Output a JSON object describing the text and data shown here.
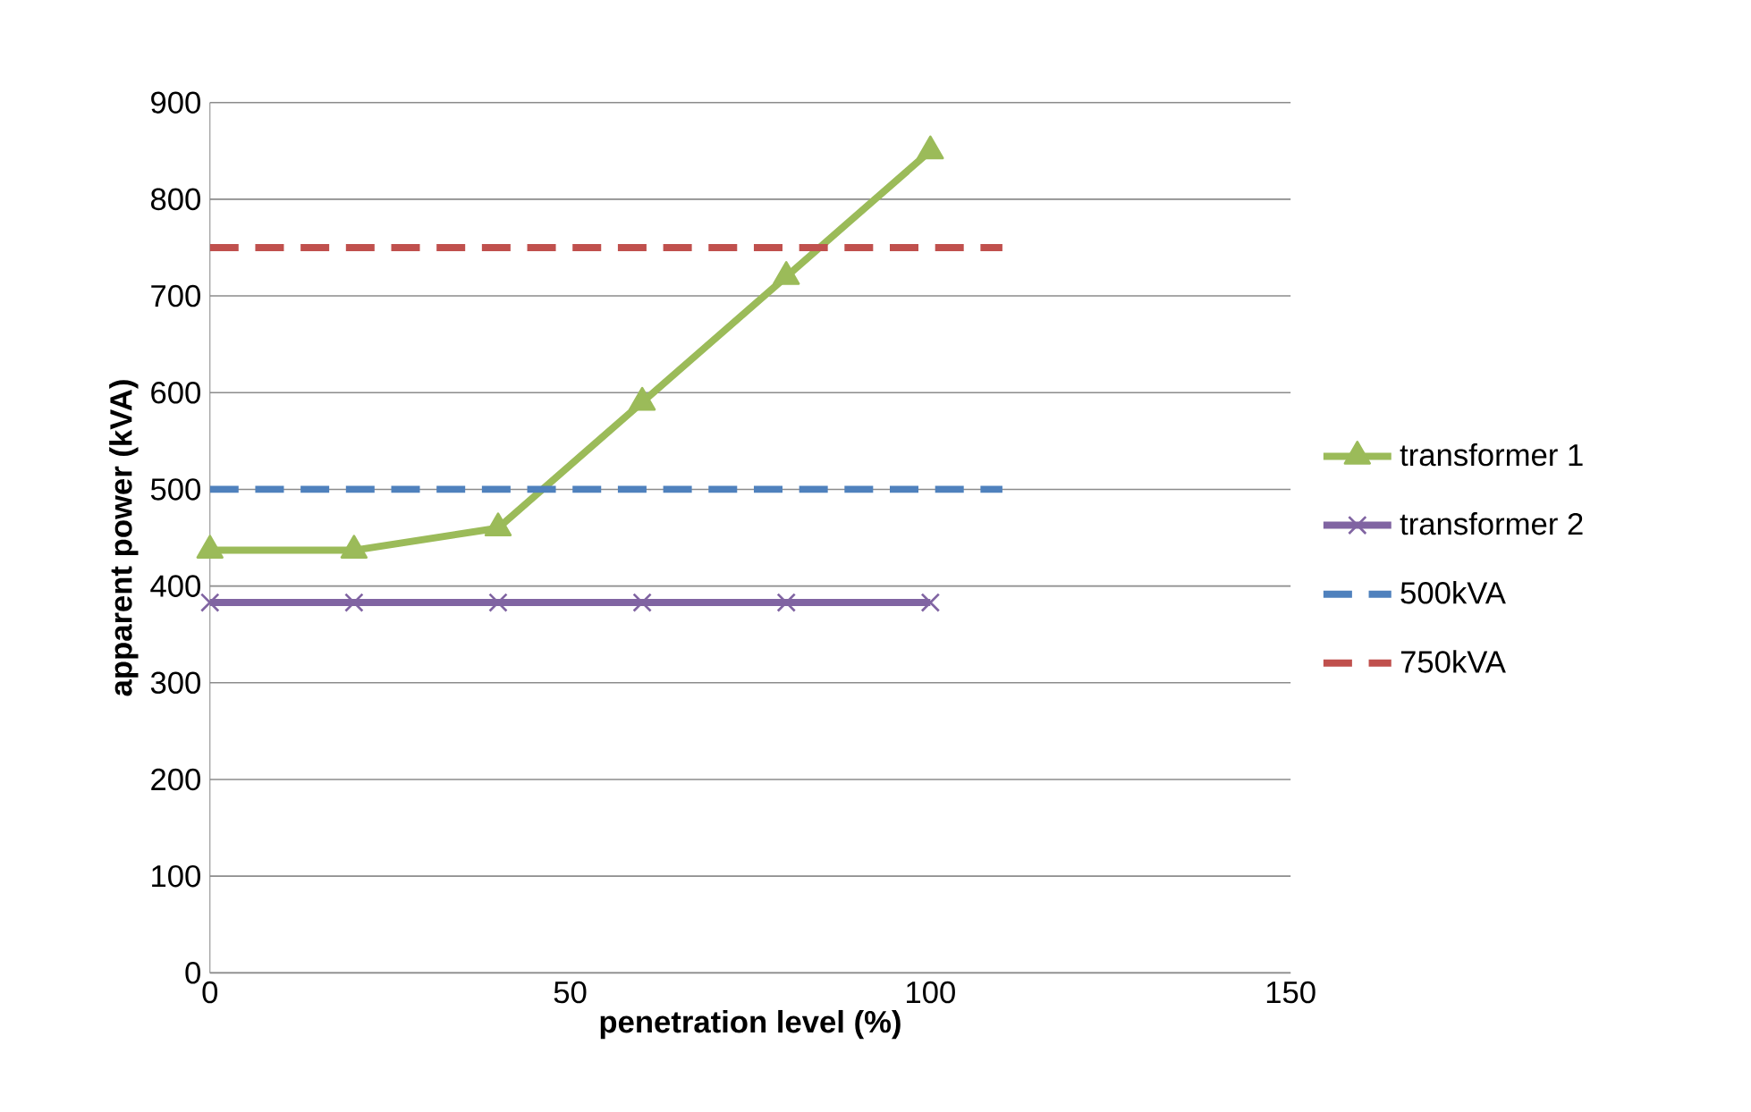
{
  "chart_data": {
    "type": "line",
    "xlabel": "penetration level (%)",
    "ylabel": "apparent power (kVA)",
    "xlim": [
      0,
      150
    ],
    "xticks": [
      0,
      50,
      100,
      150
    ],
    "ylim": [
      0,
      900
    ],
    "yticks": [
      0,
      100,
      200,
      300,
      400,
      500,
      600,
      700,
      800,
      900
    ],
    "grid": "y",
    "legend": "right",
    "series": [
      {
        "name": "transformer 1",
        "color": "#9bbb59",
        "x": [
          0,
          20,
          40,
          60,
          80,
          100
        ],
        "values": [
          437,
          437,
          460,
          590,
          720,
          850
        ],
        "marker": "triangle",
        "line_style": "solid"
      },
      {
        "name": "transformer 2",
        "color": "#8064a2",
        "x": [
          0,
          20,
          40,
          60,
          80,
          100
        ],
        "values": [
          383,
          383,
          383,
          383,
          383,
          383
        ],
        "marker": "cross",
        "line_style": "solid"
      },
      {
        "name": "500kVA",
        "color": "#4f81bd",
        "x": [
          0,
          110
        ],
        "values": [
          500,
          500
        ],
        "marker": "none",
        "line_style": "dashed"
      },
      {
        "name": "750kVA",
        "color": "#c0504d",
        "x": [
          0,
          110
        ],
        "values": [
          750,
          750
        ],
        "marker": "none",
        "line_style": "dashed"
      }
    ]
  }
}
